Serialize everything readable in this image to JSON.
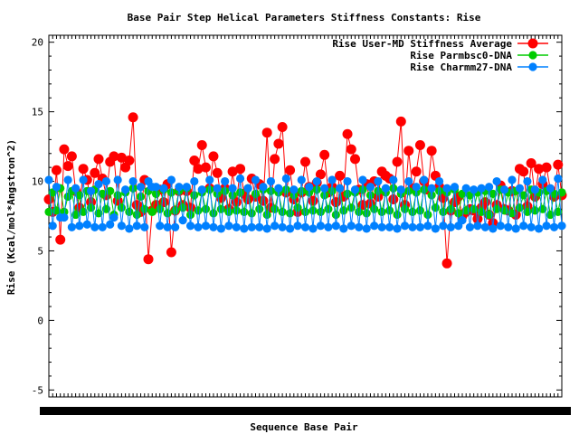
{
  "chart_data": {
    "type": "line",
    "title": "Base Pair Step Helical Parameters Stiffness Constants: Rise",
    "xlabel": "Sequence Base Pair",
    "ylabel": "Rise (Kcal/mol*Angstron^2)",
    "ylim": [
      -5.5,
      20.5
    ],
    "yticks": [
      -5,
      0,
      5,
      10,
      15,
      20
    ],
    "x_range": [
      1,
      135
    ],
    "grid": false,
    "legend_position": "top-right",
    "series": [
      {
        "name": "Rise User-MD Stiffness Average",
        "color": "#ff0000",
        "marker": "circle",
        "values": [
          8.7,
          7.8,
          10.8,
          5.8,
          12.3,
          11.1,
          11.8,
          9.3,
          8.1,
          10.9,
          10.1,
          8.5,
          10.6,
          11.6,
          10.2,
          9.0,
          11.4,
          11.8,
          8.6,
          11.7,
          11.0,
          11.5,
          14.6,
          8.3,
          7.8,
          10.1,
          4.4,
          7.9,
          8.3,
          9.4,
          8.5,
          9.8,
          4.9,
          7.9,
          9.3,
          8.3,
          9.3,
          8.1,
          11.5,
          10.9,
          12.6,
          11.0,
          9.5,
          11.8,
          10.6,
          8.8,
          9.5,
          8.0,
          10.7,
          8.5,
          10.9,
          9.1,
          8.7,
          10.2,
          8.9,
          9.8,
          8.6,
          13.5,
          8.1,
          11.6,
          12.7,
          13.9,
          9.2,
          10.8,
          8.7,
          7.8,
          9.2,
          11.4,
          9.6,
          8.6,
          9.9,
          10.5,
          11.9,
          9.2,
          9.6,
          8.5,
          10.4,
          8.9,
          13.4,
          12.3,
          11.6,
          9.4,
          8.3,
          9.8,
          8.4,
          10.0,
          8.9,
          10.7,
          10.4,
          10.2,
          8.7,
          11.4,
          14.3,
          8.3,
          12.2,
          9.5,
          10.7,
          12.6,
          10.0,
          9.4,
          12.2,
          10.4,
          9.6,
          8.8,
          4.1,
          7.9,
          8.5,
          8.9,
          7.5,
          7.8,
          8.0,
          7.9,
          7.3,
          8.1,
          8.5,
          7.6,
          7.0,
          8.3,
          9.7,
          8.0,
          7.9,
          9.3,
          7.6,
          10.9,
          10.7,
          8.2,
          11.3,
          8.9,
          10.9,
          9.8,
          11.0,
          9.4,
          8.9,
          11.2,
          9.0
        ],
        "note": ""
      },
      {
        "name": "Rise Parmbsc0-DNA",
        "color": "#00cc00",
        "marker": "circle",
        "values": [
          7.8,
          9.2,
          7.9,
          9.5,
          7.8,
          8.9,
          9.3,
          7.6,
          9.0,
          7.8,
          9.3,
          8.1,
          9.4,
          7.7,
          9.1,
          8.0,
          9.3,
          7.6,
          9.0,
          8.1,
          9.2,
          7.8,
          9.5,
          7.6,
          8.9,
          8.0,
          9.3,
          7.8,
          9.1,
          8.0,
          9.4,
          7.7,
          9.2,
          7.9,
          9.3,
          8.1,
          9.5,
          7.6,
          9.0,
          7.9,
          9.2,
          8.0,
          9.4,
          7.7,
          9.1,
          8.0,
          9.3,
          7.8,
          9.0,
          7.9,
          9.2,
          7.8,
          9.5,
          7.7,
          9.1,
          8.0,
          9.4,
          7.6,
          9.3,
          8.0,
          9.2,
          7.8,
          9.4,
          7.7,
          9.0,
          8.1,
          9.3,
          7.8,
          9.2,
          7.9,
          9.4,
          7.8,
          9.0,
          8.0,
          9.3,
          7.6,
          9.5,
          7.9,
          9.1,
          8.1,
          9.2,
          7.8,
          9.4,
          7.7,
          9.0,
          8.0,
          9.3,
          7.8,
          9.2,
          7.9,
          9.5,
          7.6,
          9.1,
          8.0,
          9.3,
          7.8,
          9.2,
          7.9,
          9.4,
          7.6,
          9.0,
          8.1,
          9.3,
          7.8,
          9.2,
          8.0,
          9.4,
          7.7,
          9.1,
          7.9,
          9.0,
          8.0,
          9.2,
          7.8,
          9.3,
          7.6,
          9.1,
          8.0,
          9.4,
          7.9,
          9.2,
          7.7,
          9.3,
          8.1,
          9.0,
          7.8,
          9.4,
          7.9,
          9.2,
          8.0,
          9.3,
          7.6,
          9.1,
          7.8,
          9.2
        ],
        "note": ""
      },
      {
        "name": "Rise Charmm27-DNA",
        "color": "#0080ff",
        "marker": "circle",
        "values": [
          10.1,
          6.8,
          9.6,
          7.4,
          7.4,
          10.1,
          6.7,
          9.5,
          6.8,
          10.1,
          6.9,
          9.3,
          6.7,
          9.8,
          6.7,
          10.0,
          6.9,
          7.4,
          10.1,
          6.8,
          9.4,
          6.6,
          10.0,
          6.8,
          9.6,
          6.7,
          10.0,
          9.6,
          9.6,
          6.8,
          9.5,
          6.7,
          10.1,
          6.7,
          9.6,
          7.2,
          9.6,
          6.8,
          10.0,
          6.7,
          9.4,
          6.8,
          10.1,
          6.7,
          9.5,
          6.6,
          10.0,
          6.8,
          9.5,
          6.7,
          10.2,
          6.6,
          9.5,
          6.7,
          10.1,
          6.7,
          9.6,
          6.6,
          10.0,
          6.8,
          9.5,
          6.7,
          10.2,
          6.6,
          9.4,
          6.8,
          10.1,
          6.7,
          9.6,
          6.6,
          10.0,
          6.8,
          9.5,
          6.7,
          10.1,
          6.8,
          9.5,
          6.6,
          10.0,
          6.8,
          9.4,
          6.7,
          10.1,
          6.6,
          9.6,
          6.8,
          10.0,
          6.7,
          9.5,
          6.7,
          10.1,
          6.6,
          9.4,
          6.8,
          10.0,
          6.7,
          9.6,
          6.7,
          10.1,
          6.8,
          9.5,
          6.6,
          10.0,
          6.8,
          9.5,
          6.7,
          9.6,
          6.8,
          7.2,
          9.5,
          6.7,
          9.4,
          6.8,
          9.5,
          6.7,
          9.6,
          6.6,
          10.0,
          6.8,
          9.4,
          6.7,
          10.1,
          6.6,
          9.5,
          6.8,
          10.0,
          6.7,
          9.4,
          6.6,
          10.1,
          6.8,
          9.5,
          6.7,
          10.2,
          6.8
        ]
      }
    ],
    "x_tick_labels_visible": "dense unreadable category labels along the x axis"
  }
}
